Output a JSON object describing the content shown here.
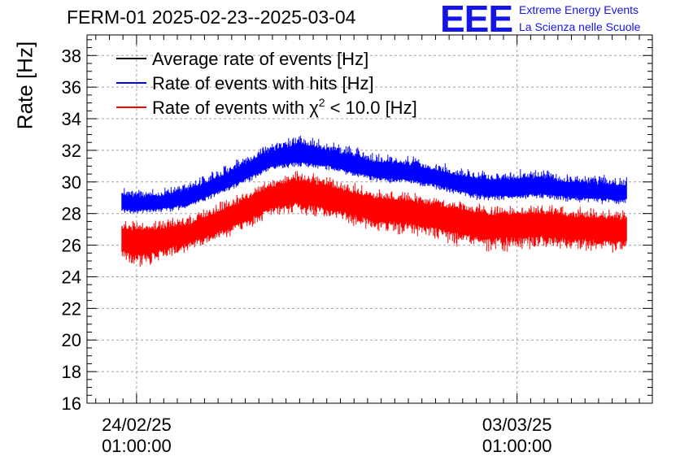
{
  "header": {
    "title": "FERM-01 2025-02-23--2025-03-04",
    "logo_text": "EEE",
    "logo_line1": "Extreme Energy Events",
    "logo_line2": "La Scienza nelle Scuole"
  },
  "colors": {
    "average": "#000000",
    "hits": "#0000ff",
    "chi2": "#ff0000",
    "grid": "#a0a0a0",
    "logo": "#1515e6"
  },
  "chart_data": {
    "type": "line",
    "title": "FERM-01 2025-02-23--2025-03-04",
    "xlabel": "",
    "ylabel": "Rate [Hz]",
    "ylim": [
      16,
      39.3
    ],
    "xlim": [
      "2025-02-23 03:08",
      "2025-03-05 12:44"
    ],
    "y_ticks": [
      "16",
      "18",
      "20",
      "22",
      "24",
      "26",
      "28",
      "30",
      "32",
      "34",
      "36",
      "38"
    ],
    "x_ticks": [
      {
        "date": "2025-02-24 01:00",
        "line1": "24/02/25",
        "line2": "01:00:00"
      },
      {
        "date": "2025-03-03 01:00",
        "line1": "03/03/25",
        "line2": "01:00:00"
      }
    ],
    "grid": true,
    "legend_position": "top-left",
    "series": [
      {
        "name": "Average rate of events [Hz]",
        "color": "#000000",
        "x": [],
        "y": []
      },
      {
        "name": "Rate of events with hits [Hz]",
        "color": "#0000ff",
        "x": [
          "2025-02-23 18:30",
          "2025-02-24 00:00",
          "2025-02-24 12:00",
          "2025-02-25 00:00",
          "2025-02-25 12:00",
          "2025-02-26 00:00",
          "2025-02-26 12:00",
          "2025-02-27 00:00",
          "2025-02-27 12:00",
          "2025-02-28 00:00",
          "2025-02-28 12:00",
          "2025-03-01 00:00",
          "2025-03-01 12:00",
          "2025-03-02 00:00",
          "2025-03-02 12:00",
          "2025-03-03 00:00",
          "2025-03-03 12:00",
          "2025-03-04 00:00",
          "2025-03-04 12:00",
          "2025-03-05 00:00",
          "2025-03-05 01:30"
        ],
        "y": [
          28.6,
          28.5,
          28.6,
          28.9,
          29.6,
          30.4,
          31.3,
          31.6,
          31.4,
          31.0,
          30.6,
          30.5,
          30.2,
          29.8,
          29.5,
          29.5,
          29.6,
          29.4,
          29.3,
          29.2,
          29.3
        ],
        "y_min": [
          28.0,
          27.9,
          28.0,
          28.3,
          29.0,
          29.8,
          30.6,
          30.9,
          30.7,
          30.3,
          29.9,
          29.8,
          29.5,
          29.0,
          28.7,
          28.8,
          28.9,
          28.7,
          28.6,
          28.5,
          28.6
        ],
        "y_max": [
          29.8,
          29.6,
          29.7,
          30.1,
          30.8,
          31.7,
          32.6,
          33.2,
          32.8,
          32.3,
          31.9,
          31.8,
          31.4,
          31.0,
          30.8,
          30.8,
          30.9,
          30.6,
          30.5,
          30.4,
          30.5
        ]
      },
      {
        "name": "Rate of events with χ² < 10.0 [Hz]",
        "color": "#ff0000",
        "x": [
          "2025-02-23 18:30",
          "2025-02-24 00:00",
          "2025-02-24 12:00",
          "2025-02-25 00:00",
          "2025-02-25 12:00",
          "2025-02-26 00:00",
          "2025-02-26 12:00",
          "2025-02-27 00:00",
          "2025-02-27 12:00",
          "2025-02-28 00:00",
          "2025-02-28 12:00",
          "2025-03-01 00:00",
          "2025-03-01 12:00",
          "2025-03-02 00:00",
          "2025-03-02 12:00",
          "2025-03-03 00:00",
          "2025-03-03 12:00",
          "2025-03-04 00:00",
          "2025-03-04 12:00",
          "2025-03-05 00:00",
          "2025-03-05 01:30"
        ],
        "y": [
          26.4,
          26.3,
          26.4,
          26.7,
          27.4,
          28.1,
          29.0,
          29.4,
          29.1,
          28.7,
          28.3,
          28.2,
          27.9,
          27.6,
          27.3,
          27.3,
          27.4,
          27.2,
          27.1,
          27.0,
          27.0
        ],
        "y_min": [
          24.8,
          24.4,
          24.9,
          25.5,
          26.1,
          26.8,
          27.6,
          27.9,
          27.6,
          27.1,
          26.7,
          26.5,
          26.2,
          25.8,
          25.4,
          25.6,
          25.7,
          25.5,
          25.5,
          25.4,
          25.6
        ],
        "y_max": [
          27.8,
          27.6,
          27.7,
          28.0,
          28.7,
          29.5,
          30.4,
          30.9,
          30.5,
          30.0,
          29.6,
          29.5,
          29.2,
          28.9,
          28.6,
          28.6,
          28.7,
          28.5,
          28.4,
          28.3,
          28.4
        ]
      }
    ]
  }
}
